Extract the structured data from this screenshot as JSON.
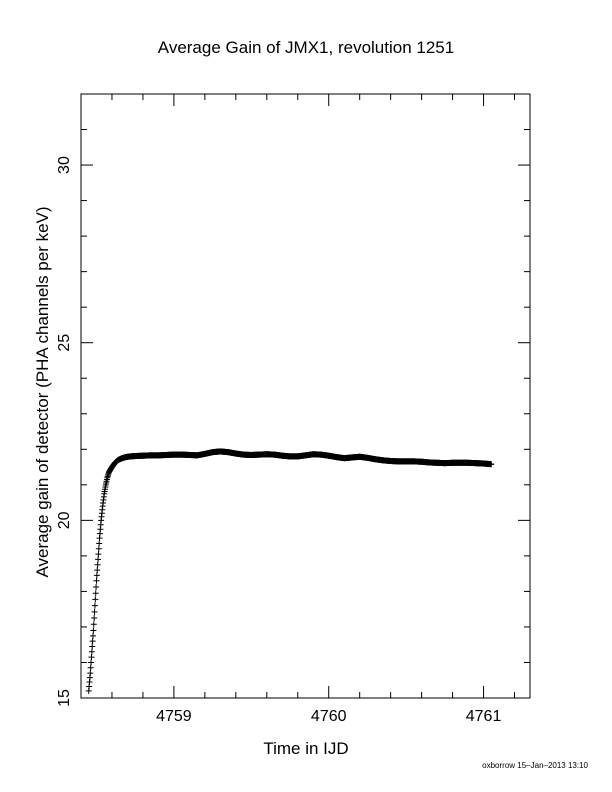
{
  "chart_data": {
    "type": "scatter",
    "title": "Average Gain of JMX1, revolution 1251",
    "xlabel": "Time in IJD",
    "ylabel": "Average gain of detector (PHA channels per keV)",
    "xlim": [
      4758.4,
      4761.3
    ],
    "ylim": [
      15,
      32
    ],
    "x_ticks": [
      4759,
      4760,
      4761
    ],
    "y_ticks": [
      15,
      20,
      25,
      30
    ],
    "grid": false,
    "marker": "+",
    "series": [
      {
        "x": [
          4758.45,
          4758.46,
          4758.47,
          4758.48,
          4758.49,
          4758.5,
          4758.51,
          4758.52,
          4758.53,
          4758.54,
          4758.55,
          4758.56,
          4758.57,
          4758.58,
          4758.6,
          4758.62,
          4758.64,
          4758.66,
          4758.68,
          4758.7,
          4758.72,
          4758.75,
          4758.8,
          4758.85,
          4758.9,
          4758.95,
          4759.0,
          4759.05,
          4759.1,
          4759.15,
          4759.2,
          4759.25,
          4759.3,
          4759.35,
          4759.4,
          4759.45,
          4759.5,
          4759.55,
          4759.6,
          4759.65,
          4759.7,
          4759.75,
          4759.8,
          4759.85,
          4759.9,
          4759.95,
          4760.0,
          4760.05,
          4760.1,
          4760.15,
          4760.2,
          4760.25,
          4760.3,
          4760.35,
          4760.4,
          4760.45,
          4760.5,
          4760.55,
          4760.6,
          4760.65,
          4760.7,
          4760.75,
          4760.8,
          4760.85,
          4760.9,
          4760.95,
          4761.0,
          4761.05
        ],
        "y": [
          15.2,
          15.7,
          16.3,
          16.9,
          17.6,
          18.3,
          18.9,
          19.5,
          20.0,
          20.4,
          20.75,
          21.0,
          21.2,
          21.35,
          21.5,
          21.62,
          21.7,
          21.74,
          21.77,
          21.79,
          21.8,
          21.81,
          21.82,
          21.83,
          21.83,
          21.84,
          21.85,
          21.85,
          21.84,
          21.83,
          21.87,
          21.92,
          21.94,
          21.92,
          21.88,
          21.85,
          21.84,
          21.85,
          21.86,
          21.85,
          21.82,
          21.8,
          21.8,
          21.83,
          21.86,
          21.85,
          21.82,
          21.78,
          21.75,
          21.77,
          21.79,
          21.76,
          21.72,
          21.69,
          21.67,
          21.66,
          21.66,
          21.66,
          21.65,
          21.63,
          21.62,
          21.61,
          21.62,
          21.62,
          21.62,
          21.61,
          21.6,
          21.58
        ]
      }
    ]
  },
  "footer": "oxborrow 15–Jan–2013 13:10"
}
